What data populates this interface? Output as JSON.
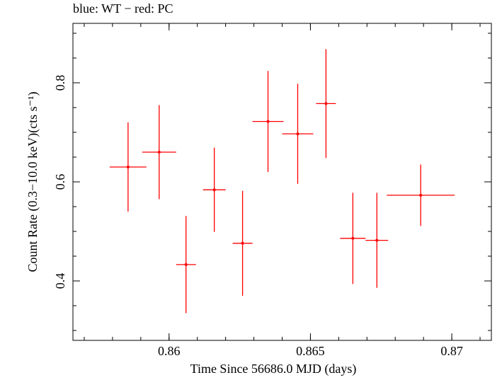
{
  "chart_data": {
    "type": "scatter",
    "title": "blue: WT − red: PC",
    "xlabel": "Time Since 56686.0 MJD (days)",
    "ylabel": "Count Rate (0.3−10.0 keV)(cts s⁻¹)",
    "xlim": [
      0.8566,
      0.8714
    ],
    "ylim": [
      0.28,
      0.92
    ],
    "xticks": [
      {
        "value": 0.86,
        "label": "0.86"
      },
      {
        "value": 0.865,
        "label": "0.865"
      },
      {
        "value": 0.87,
        "label": "0.87"
      }
    ],
    "yticks": [
      {
        "value": 0.4,
        "label": "0.4"
      },
      {
        "value": 0.6,
        "label": "0.6"
      },
      {
        "value": 0.8,
        "label": "0.8"
      }
    ],
    "x_minor_step": 0.001,
    "y_minor_step": 0.05,
    "grid": false,
    "series": [
      {
        "color": "#ff0000",
        "points": [
          {
            "x": 0.85855,
            "xerr": 0.00065,
            "y": 0.63,
            "yerr": 0.09
          },
          {
            "x": 0.85965,
            "xerr": 0.0006,
            "y": 0.66,
            "yerr": 0.095
          },
          {
            "x": 0.8606,
            "xerr": 0.00035,
            "y": 0.433,
            "yerr": 0.098
          },
          {
            "x": 0.8616,
            "xerr": 0.0004,
            "y": 0.584,
            "yerr": 0.085
          },
          {
            "x": 0.8626,
            "xerr": 0.00035,
            "y": 0.476,
            "yerr": 0.106
          },
          {
            "x": 0.8635,
            "xerr": 0.00055,
            "y": 0.722,
            "yerr": 0.102
          },
          {
            "x": 0.86455,
            "xerr": 0.00055,
            "y": 0.697,
            "yerr": 0.101
          },
          {
            "x": 0.86555,
            "xerr": 0.00035,
            "y": 0.758,
            "yerr": 0.11
          },
          {
            "x": 0.8665,
            "xerr": 0.00045,
            "y": 0.486,
            "yerr": 0.092
          },
          {
            "x": 0.86735,
            "xerr": 0.0004,
            "y": 0.482,
            "yerr": 0.096
          },
          {
            "x": 0.8689,
            "xerr": 0.0012,
            "y": 0.573,
            "yerr": 0.062
          }
        ]
      }
    ]
  }
}
